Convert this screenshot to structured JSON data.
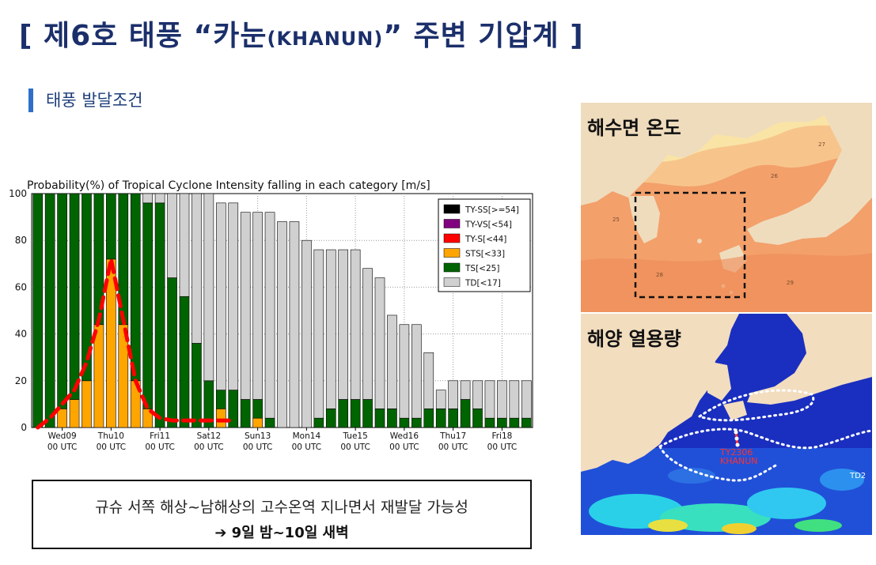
{
  "header": {
    "title_main": "[ 제6호 태풍 “카눈",
    "title_small": "(KHANUN)",
    "title_end": "” 주변 기압계 ]",
    "section_label": "태풍 발달조건"
  },
  "chart_data": {
    "type": "bar",
    "stacked": true,
    "title": "Probability(%) of Tropical Cyclone Intensity falling in each category [m/s]",
    "ylim": [
      0,
      100
    ],
    "yticks": [
      "0",
      "20",
      "40",
      "60",
      "80",
      "100"
    ],
    "grid": true,
    "legend_position": "top-right",
    "x_tick_labels": [
      {
        "day": "Wed09",
        "time": "00 UTC"
      },
      {
        "day": "Thu10",
        "time": "00 UTC"
      },
      {
        "day": "Fri11",
        "time": "00 UTC"
      },
      {
        "day": "Sat12",
        "time": "00 UTC"
      },
      {
        "day": "Sun13",
        "time": "00 UTC"
      },
      {
        "day": "Mon14",
        "time": "00 UTC"
      },
      {
        "day": "Tue15",
        "time": "00 UTC"
      },
      {
        "day": "Wed16",
        "time": "00 UTC"
      },
      {
        "day": "Thu17",
        "time": "00 UTC"
      },
      {
        "day": "Fri18",
        "time": "00 UTC"
      }
    ],
    "series": [
      {
        "name": "TY-SS[>=54]",
        "color": "#000000",
        "values": [
          0,
          0,
          0,
          0,
          0,
          0,
          0,
          0,
          0,
          0,
          0,
          0,
          0,
          0,
          0,
          0,
          0,
          0,
          0,
          0,
          0,
          0,
          0,
          0,
          0,
          0,
          0,
          0,
          0,
          0,
          0,
          0,
          0,
          0,
          0,
          0,
          0,
          0,
          0,
          0,
          0
        ]
      },
      {
        "name": "TY-VS[<54]",
        "color": "#800080",
        "values": [
          0,
          0,
          0,
          0,
          0,
          0,
          0,
          0,
          0,
          0,
          0,
          0,
          0,
          0,
          0,
          0,
          0,
          0,
          0,
          0,
          0,
          0,
          0,
          0,
          0,
          0,
          0,
          0,
          0,
          0,
          0,
          0,
          0,
          0,
          0,
          0,
          0,
          0,
          0,
          0,
          0
        ]
      },
      {
        "name": "TY-S[<44]",
        "color": "#ff0000",
        "values": [
          0,
          0,
          0,
          0,
          0,
          0,
          0,
          0,
          0,
          0,
          0,
          0,
          0,
          0,
          0,
          0,
          0,
          0,
          0,
          0,
          0,
          0,
          0,
          0,
          0,
          0,
          0,
          0,
          0,
          0,
          0,
          0,
          0,
          0,
          0,
          0,
          0,
          0,
          0,
          0,
          0
        ]
      },
      {
        "name": "STS[<33]",
        "color": "#ffa500",
        "values": [
          0,
          0,
          8,
          12,
          20,
          44,
          72,
          44,
          20,
          8,
          0,
          0,
          0,
          0,
          0,
          8,
          0,
          0,
          4,
          0,
          0,
          0,
          0,
          0,
          0,
          0,
          0,
          0,
          0,
          0,
          0,
          0,
          0,
          0,
          0,
          0,
          0,
          0,
          0,
          0,
          0
        ]
      },
      {
        "name": "TS[<25]",
        "color": "#006400",
        "values": [
          100,
          100,
          92,
          88,
          80,
          56,
          28,
          56,
          80,
          88,
          96,
          64,
          56,
          36,
          20,
          8,
          16,
          12,
          8,
          4,
          0,
          0,
          0,
          4,
          8,
          12,
          12,
          12,
          8,
          8,
          4,
          4,
          8,
          8,
          8,
          12,
          8,
          4,
          4,
          4,
          4
        ]
      },
      {
        "name": "TD[<17]",
        "color": "#d0d0d0",
        "values": [
          0,
          0,
          0,
          0,
          0,
          0,
          0,
          0,
          0,
          4,
          4,
          36,
          44,
          64,
          80,
          80,
          80,
          80,
          80,
          88,
          88,
          88,
          80,
          72,
          68,
          64,
          64,
          56,
          56,
          40,
          40,
          40,
          24,
          8,
          12,
          8,
          12,
          16,
          16,
          16,
          16
        ]
      }
    ],
    "trend_line": {
      "color": "#ff0000",
      "dashed": true,
      "values": [
        0,
        4,
        10,
        16,
        28,
        46,
        72,
        46,
        20,
        8,
        4,
        3,
        3,
        3,
        3,
        3,
        3
      ]
    }
  },
  "note": {
    "line1": "규슈 서쪽 해상~남해상의 고수온역 지나면서 재발달 가능성",
    "line2": "➔ 9일 밤~10일 새벽"
  },
  "maps": {
    "sst": {
      "label": "해수면 온도",
      "contour_labels": [
        "25",
        "26",
        "27",
        "28",
        "29"
      ]
    },
    "ohc": {
      "label": "해양 열용량",
      "typhoon_label_1": "TY2306",
      "typhoon_label_2": "KHANUN",
      "edge_label": "TD2"
    }
  }
}
